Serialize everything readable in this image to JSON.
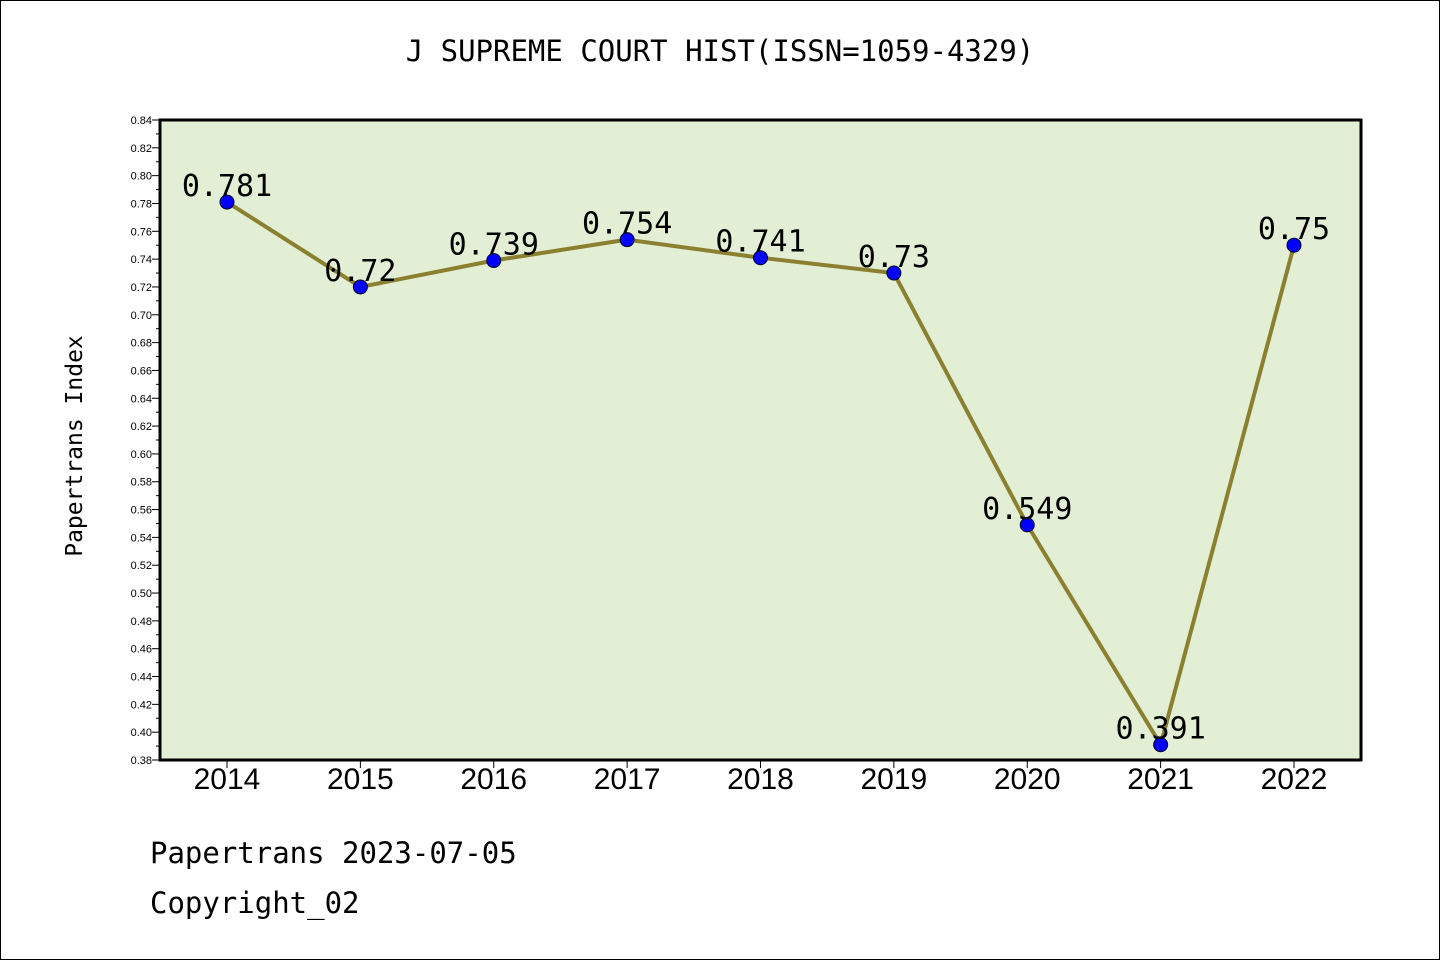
{
  "chart_data": {
    "type": "line",
    "title": "J SUPREME COURT HIST(ISSN=1059-4329)",
    "ylabel": "Papertrans Index",
    "xlabel": "",
    "categories": [
      "2014",
      "2015",
      "2016",
      "2017",
      "2018",
      "2019",
      "2020",
      "2021",
      "2022"
    ],
    "series": [
      {
        "values": [
          0.781,
          0.72,
          0.739,
          0.754,
          0.741,
          0.73,
          0.549,
          0.391,
          0.75
        ]
      }
    ],
    "data_labels": [
      "0.781",
      "0.72",
      "0.739",
      "0.754",
      "0.741",
      "0.73",
      "0.549",
      "0.391",
      "0.75"
    ],
    "ylim": [
      0.38,
      0.84
    ],
    "yticks": [
      "0.38",
      "0.40",
      "0.42",
      "0.44",
      "0.46",
      "0.48",
      "0.50",
      "0.52",
      "0.54",
      "0.56",
      "0.58",
      "0.60",
      "0.62",
      "0.64",
      "0.66",
      "0.68",
      "0.70",
      "0.72",
      "0.74",
      "0.76",
      "0.78",
      "0.80",
      "0.82",
      "0.84"
    ],
    "grid": false,
    "colors": {
      "plot_background": "#e2efd4",
      "line": "#8b8030",
      "marker": "#0000ff"
    }
  },
  "footer": {
    "line1": "Papertrans 2023-07-05",
    "line2": "Copyright_02"
  }
}
